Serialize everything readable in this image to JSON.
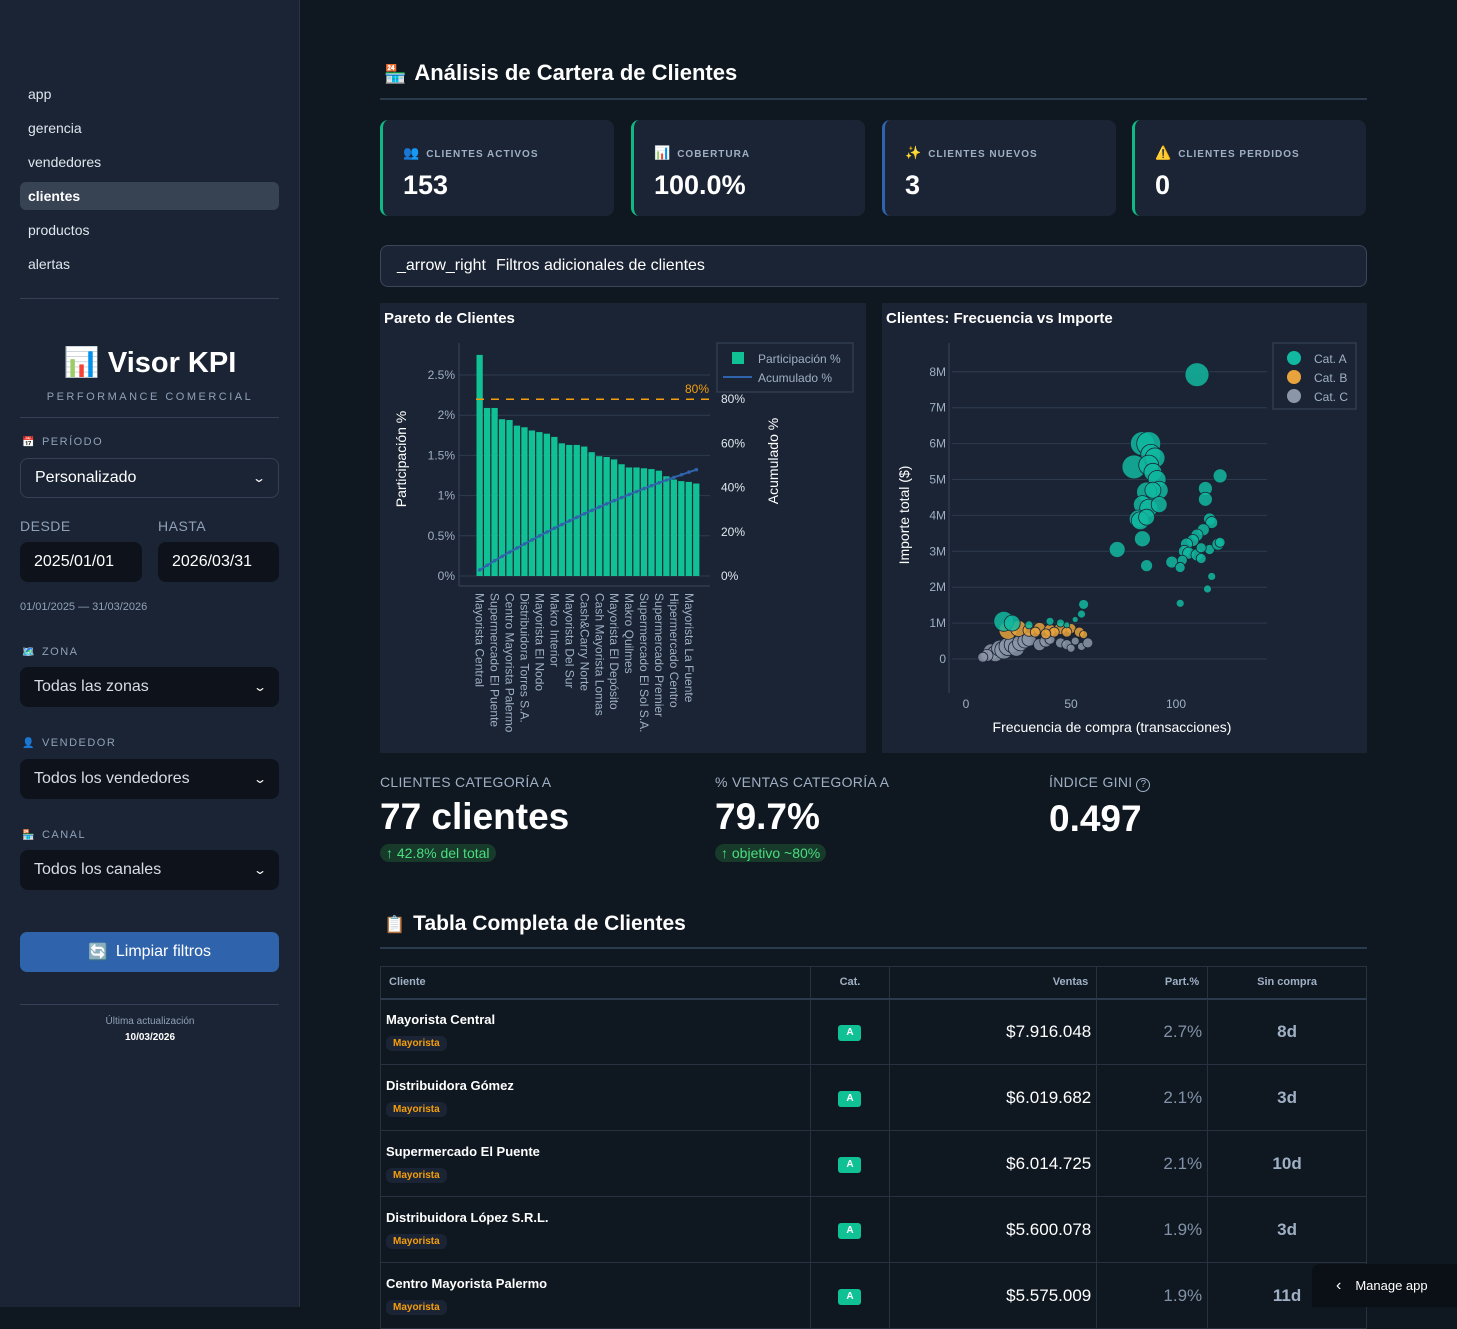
{
  "sidebar": {
    "nav": [
      "app",
      "gerencia",
      "vendedores",
      "clientes",
      "productos",
      "alertas"
    ],
    "active": "clientes",
    "brand": "Visor KPI",
    "brand_icon": "bar-chart-icon",
    "brand_sub": "PERFORMANCE COMERCIAL",
    "periodo_label": "PERÍODO",
    "periodo_value": "Personalizado",
    "desde_label": "DESDE",
    "hasta_label": "HASTA",
    "desde": "2025/01/01",
    "hasta": "2026/03/31",
    "range": "01/01/2025 — 31/03/2026",
    "zona_label": "ZONA",
    "zona_value": "Todas las zonas",
    "vendedor_label": "VENDEDOR",
    "vendedor_value": "Todos los vendedores",
    "canal_label": "CANAL",
    "canal_value": "Todos los canales",
    "clear": "Limpiar filtros",
    "updated_label": "Última actualización",
    "updated": "10/03/2026"
  },
  "header": {
    "title": "Análisis de Cartera de Clientes",
    "icon": "store-icon"
  },
  "kpis": [
    {
      "label": "CLIENTES ACTIVOS",
      "value": "153",
      "icon": "people-icon",
      "accent": "#10b981"
    },
    {
      "label": "COBERTURA",
      "value": "100.0%",
      "icon": "chart-icon",
      "accent": "#10b981"
    },
    {
      "label": "CLIENTES NUEVOS",
      "value": "3",
      "icon": "sparkles-icon",
      "accent": "#2f64ac"
    },
    {
      "label": "CLIENTES PERDIDOS",
      "value": "0",
      "icon": "warning-icon",
      "accent": "#10b981"
    }
  ],
  "expander": {
    "label": "_arrow_right",
    "text": "Filtros adicionales de clientes"
  },
  "chart_data": [
    {
      "type": "bar",
      "title": "Pareto de Clientes",
      "ylabel": "Participación %",
      "y2label": "Acumulado %",
      "ylim": [
        0,
        2.8
      ],
      "y2lim": [
        0,
        100
      ],
      "yticks": [
        "0%",
        "0.5%",
        "1%",
        "1.5%",
        "2%",
        "2.5%"
      ],
      "y2ticks": [
        "0%",
        "20%",
        "40%",
        "60%",
        "80%"
      ],
      "threshold": {
        "value": 80,
        "label": "80%",
        "color": "#f59e0b"
      },
      "legend": [
        "Participación %",
        "Acumulado %"
      ],
      "legend_position": "top-right",
      "tick_labels": [
        "Mayorista Central",
        "Supermercado El Puente",
        "Centro Mayorista Palermo",
        "Distribuidora Torres S.A.",
        "Mayorista El Nodo",
        "Makro Interior",
        "Mayorista Del Sur",
        "Cash&Carry Norte",
        "Cash Mayorista Lomas",
        "Mayorista El Depósito",
        "Makro Quilmes",
        "Supermercado El Sol S.A.",
        "Supermercado Premier",
        "Hipermercado Centro",
        "Mayorista La Fuente"
      ],
      "series": [
        {
          "name": "Participación %",
          "color": "#10c195",
          "values": [
            2.75,
            2.09,
            2.09,
            1.95,
            1.94,
            1.87,
            1.85,
            1.81,
            1.79,
            1.77,
            1.73,
            1.65,
            1.63,
            1.63,
            1.61,
            1.54,
            1.49,
            1.48,
            1.45,
            1.39,
            1.35,
            1.35,
            1.34,
            1.33,
            1.31,
            1.24,
            1.2,
            1.18,
            1.17,
            1.15
          ]
        },
        {
          "name": "Acumulado %",
          "color": "#2f64ac"
        }
      ]
    },
    {
      "type": "scatter",
      "title": "Clientes: Frecuencia vs Importe",
      "xlabel": "Frecuencia de compra (transacciones)",
      "ylabel": "Importe total ($)",
      "xlim": [
        -5,
        145
      ],
      "ylim": [
        0,
        8.8
      ],
      "xticks": [
        0,
        50,
        100
      ],
      "yticks": [
        "0",
        "1M",
        "2M",
        "3M",
        "4M",
        "5M",
        "6M",
        "7M",
        "8M"
      ],
      "legend_position": "top-right",
      "series": [
        {
          "name": "Cat. A",
          "color": "#10b9a0",
          "points": [
            [
              110,
              7.92,
              12
            ],
            [
              84,
              6.0,
              12
            ],
            [
              87,
              6.0,
              12
            ],
            [
              88,
              5.7,
              10
            ],
            [
              90,
              5.6,
              10
            ],
            [
              80,
              5.35,
              12
            ],
            [
              87,
              5.4,
              10
            ],
            [
              89,
              5.2,
              9
            ],
            [
              91,
              5.0,
              9
            ],
            [
              92,
              4.7,
              9
            ],
            [
              86,
              4.65,
              10
            ],
            [
              89,
              4.7,
              8
            ],
            [
              84,
              4.3,
              9
            ],
            [
              87,
              4.2,
              9
            ],
            [
              92,
              4.3,
              8
            ],
            [
              82,
              3.9,
              9
            ],
            [
              83,
              3.85,
              9
            ],
            [
              86,
              3.95,
              8
            ],
            [
              84,
              3.35,
              8
            ],
            [
              72,
              3.05,
              8
            ],
            [
              86,
              2.6,
              6
            ],
            [
              121,
              5.1,
              7
            ],
            [
              114,
              4.75,
              7
            ],
            [
              114,
              4.45,
              7
            ],
            [
              116,
              3.9,
              6
            ],
            [
              117,
              3.8,
              6
            ],
            [
              113,
              3.6,
              6
            ],
            [
              110,
              3.45,
              6
            ],
            [
              108,
              3.3,
              6
            ],
            [
              105,
              3.2,
              6
            ],
            [
              104,
              3.0,
              6
            ],
            [
              106,
              2.95,
              6
            ],
            [
              110,
              2.9,
              6
            ],
            [
              112,
              2.8,
              5
            ],
            [
              116,
              3.05,
              5
            ],
            [
              120,
              3.2,
              6
            ],
            [
              121,
              3.25,
              5
            ],
            [
              112,
              3.1,
              5
            ],
            [
              98,
              2.7,
              6
            ],
            [
              103,
              2.75,
              5
            ],
            [
              102,
              2.55,
              5
            ],
            [
              117,
              2.3,
              4
            ],
            [
              115,
              1.95,
              4
            ],
            [
              102,
              1.55,
              4
            ],
            [
              18,
              1.05,
              10
            ],
            [
              22,
              1.0,
              8
            ],
            [
              30,
              0.95,
              4
            ],
            [
              56,
              1.52,
              5
            ],
            [
              55,
              1.25,
              4
            ],
            [
              52,
              1.1,
              3
            ],
            [
              45,
              1.0,
              4
            ],
            [
              40,
              1.05,
              4
            ],
            [
              48,
              0.95,
              3
            ]
          ]
        },
        {
          "name": "Cat. B",
          "color": "#e8a33d",
          "points": [
            [
              20,
              0.8,
              9
            ],
            [
              25,
              0.85,
              8
            ],
            [
              30,
              0.8,
              6
            ],
            [
              35,
              0.85,
              6
            ],
            [
              40,
              0.8,
              6
            ],
            [
              45,
              0.85,
              6
            ],
            [
              50,
              0.85,
              5
            ],
            [
              54,
              0.75,
              5
            ],
            [
              56,
              0.68,
              4
            ],
            [
              42,
              0.75,
              5
            ],
            [
              38,
              0.7,
              5
            ],
            [
              48,
              0.75,
              5
            ],
            [
              33,
              0.75,
              5
            ]
          ]
        },
        {
          "name": "Cat. C",
          "color": "#8b97a8",
          "points": [
            [
              12,
              0.2,
              8
            ],
            [
              14,
              0.15,
              8
            ],
            [
              16,
              0.3,
              8
            ],
            [
              18,
              0.25,
              9
            ],
            [
              20,
              0.35,
              9
            ],
            [
              22,
              0.4,
              8
            ],
            [
              24,
              0.3,
              8
            ],
            [
              26,
              0.45,
              8
            ],
            [
              28,
              0.5,
              7
            ],
            [
              30,
              0.55,
              7
            ],
            [
              35,
              0.4,
              6
            ],
            [
              38,
              0.5,
              6
            ],
            [
              40,
              0.55,
              5
            ],
            [
              45,
              0.45,
              5
            ],
            [
              48,
              0.4,
              5
            ],
            [
              50,
              0.3,
              4
            ],
            [
              52,
              0.5,
              4
            ],
            [
              55,
              0.35,
              4
            ],
            [
              58,
              0.45,
              5
            ],
            [
              10,
              0.1,
              6
            ],
            [
              8,
              0.05,
              5
            ]
          ]
        }
      ]
    }
  ],
  "metrics": [
    {
      "label": "CLIENTES CATEGORÍA A",
      "value": "77 clientes",
      "delta": "↑ 42.8% del total"
    },
    {
      "label": "% VENTAS CATEGORÍA A",
      "value": "79.7%",
      "delta": "↑ objetivo ~80%"
    },
    {
      "label": "ÍNDICE GINI",
      "value": "0.497",
      "help": "?"
    }
  ],
  "table": {
    "title": "Tabla Completa de Clientes",
    "icon": "clipboard-icon",
    "headers": [
      "Cliente",
      "Cat.",
      "Ventas",
      "Part.%",
      "Sin compra"
    ],
    "rows": [
      {
        "name": "Mayorista Central",
        "tag": "Mayorista",
        "cat": "A",
        "ventas": "$7.916.048",
        "part": "2.7%",
        "sin": "8d"
      },
      {
        "name": "Distribuidora Gómez",
        "tag": "Mayorista",
        "cat": "A",
        "ventas": "$6.019.682",
        "part": "2.1%",
        "sin": "3d"
      },
      {
        "name": "Supermercado El Puente",
        "tag": "Mayorista",
        "cat": "A",
        "ventas": "$6.014.725",
        "part": "2.1%",
        "sin": "10d"
      },
      {
        "name": "Distribuidora López S.R.L.",
        "tag": "Mayorista",
        "cat": "A",
        "ventas": "$5.600.078",
        "part": "1.9%",
        "sin": "3d"
      },
      {
        "name": "Centro Mayorista Palermo",
        "tag": "Mayorista",
        "cat": "A",
        "ventas": "$5.575.009",
        "part": "1.9%",
        "sin": "11d"
      }
    ]
  },
  "manage": "Manage app"
}
